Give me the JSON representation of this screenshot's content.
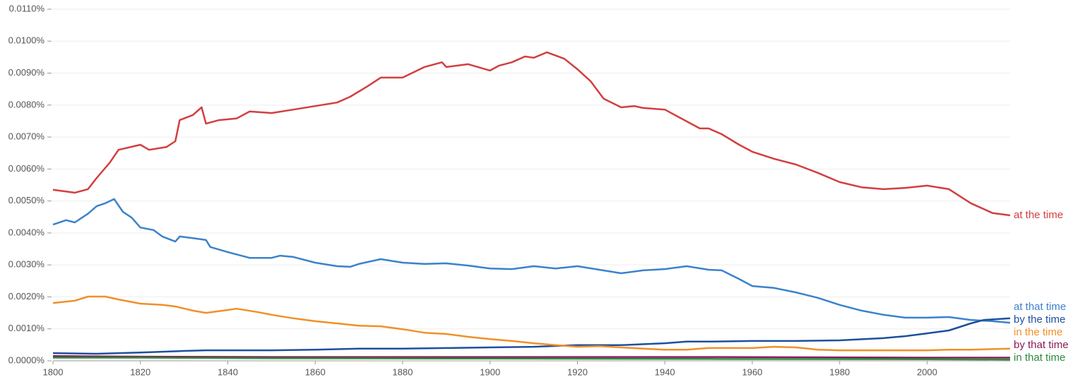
{
  "chart_data": {
    "type": "line",
    "xlim": [
      1800,
      2019
    ],
    "xticks": [
      1800,
      1820,
      1840,
      1860,
      1880,
      1900,
      1920,
      1940,
      1960,
      1980,
      2000
    ],
    "ylim": [
      0,
      0.011
    ],
    "yticks": [
      {
        "value": 0,
        "label": "0.0000%"
      },
      {
        "value": 0.001,
        "label": "0.0010%"
      },
      {
        "value": 0.002,
        "label": "0.0020%"
      },
      {
        "value": 0.003,
        "label": "0.0030%"
      },
      {
        "value": 0.004,
        "label": "0.0040%"
      },
      {
        "value": 0.005,
        "label": "0.0050%"
      },
      {
        "value": 0.006,
        "label": "0.0060%"
      },
      {
        "value": 0.007,
        "label": "0.0070%"
      },
      {
        "value": 0.008,
        "label": "0.0080%"
      },
      {
        "value": 0.009,
        "label": "0.0090%"
      },
      {
        "value": 0.01,
        "label": "0.0100%"
      },
      {
        "value": 0.011,
        "label": "0.0110%"
      }
    ],
    "grid": true,
    "series": [
      {
        "name": "at the time",
        "color": "#d23f3f",
        "x": [
          1800,
          1805,
          1808,
          1810,
          1813,
          1815,
          1820,
          1822,
          1826,
          1828,
          1829,
          1832,
          1834,
          1835,
          1838,
          1842,
          1845,
          1850,
          1855,
          1860,
          1865,
          1868,
          1872,
          1875,
          1880,
          1885,
          1889,
          1890,
          1895,
          1900,
          1902,
          1905,
          1908,
          1910,
          1913,
          1917,
          1920,
          1923,
          1926,
          1930,
          1933,
          1935,
          1940,
          1945,
          1948,
          1950,
          1953,
          1957,
          1960,
          1965,
          1970,
          1975,
          1980,
          1985,
          1990,
          1995,
          2000,
          2005,
          2010,
          2015,
          2019
        ],
        "values": [
          0.00535,
          0.00526,
          0.00537,
          0.00572,
          0.0062,
          0.0066,
          0.00676,
          0.0066,
          0.00669,
          0.00687,
          0.00753,
          0.00769,
          0.00793,
          0.00742,
          0.00753,
          0.00758,
          0.0078,
          0.00775,
          0.00786,
          0.00797,
          0.00808,
          0.00826,
          0.00859,
          0.00886,
          0.00886,
          0.00919,
          0.00934,
          0.00919,
          0.00928,
          0.00908,
          0.00923,
          0.00934,
          0.00952,
          0.00948,
          0.00965,
          0.00945,
          0.00912,
          0.00875,
          0.0082,
          0.00793,
          0.00797,
          0.00791,
          0.00786,
          0.00749,
          0.00727,
          0.00727,
          0.00709,
          0.00676,
          0.00654,
          0.00632,
          0.00614,
          0.00588,
          0.00559,
          0.00543,
          0.00537,
          0.00541,
          0.00548,
          0.00537,
          0.00493,
          0.00462,
          0.00455
        ]
      },
      {
        "name": "at that time",
        "color": "#3b82cc",
        "x": [
          1800,
          1803,
          1805,
          1808,
          1810,
          1812,
          1814,
          1816,
          1818,
          1820,
          1823,
          1825,
          1828,
          1829,
          1832,
          1835,
          1836,
          1840,
          1845,
          1850,
          1852,
          1855,
          1860,
          1865,
          1868,
          1870,
          1875,
          1880,
          1885,
          1890,
          1895,
          1900,
          1905,
          1910,
          1915,
          1920,
          1925,
          1930,
          1935,
          1940,
          1945,
          1950,
          1953,
          1957,
          1960,
          1965,
          1970,
          1975,
          1980,
          1985,
          1990,
          1995,
          2000,
          2005,
          2010,
          2015,
          2019
        ],
        "values": [
          0.00426,
          0.0044,
          0.00433,
          0.0046,
          0.00484,
          0.00493,
          0.00506,
          0.00466,
          0.00448,
          0.00417,
          0.00409,
          0.00389,
          0.00373,
          0.00389,
          0.00384,
          0.00378,
          0.00356,
          0.0034,
          0.00322,
          0.00322,
          0.00329,
          0.00325,
          0.00307,
          0.00296,
          0.00294,
          0.00303,
          0.00318,
          0.00307,
          0.00303,
          0.00305,
          0.00298,
          0.00289,
          0.00287,
          0.00296,
          0.00289,
          0.00296,
          0.00285,
          0.00274,
          0.00283,
          0.00287,
          0.00296,
          0.00285,
          0.00283,
          0.00256,
          0.00234,
          0.00228,
          0.00214,
          0.00197,
          0.00175,
          0.00157,
          0.00144,
          0.00135,
          0.00135,
          0.00137,
          0.00128,
          0.00124,
          0.00119
        ]
      },
      {
        "name": "by the time",
        "color": "#1f4f9e",
        "x": [
          1800,
          1810,
          1820,
          1830,
          1835,
          1840,
          1850,
          1860,
          1870,
          1880,
          1890,
          1900,
          1910,
          1920,
          1930,
          1940,
          1945,
          1950,
          1960,
          1970,
          1980,
          1990,
          1995,
          2000,
          2005,
          2010,
          2013,
          2019
        ],
        "values": [
          0.00024,
          0.00022,
          0.00026,
          0.00031,
          0.00033,
          0.00033,
          0.00033,
          0.00035,
          0.00038,
          0.00038,
          0.0004,
          0.00042,
          0.00044,
          0.00049,
          0.00049,
          0.00055,
          0.0006,
          0.0006,
          0.00062,
          0.00062,
          0.00064,
          0.00071,
          0.00077,
          0.00086,
          0.00095,
          0.00117,
          0.00128,
          0.00133
        ]
      },
      {
        "name": "in the time",
        "color": "#f0902a",
        "x": [
          1800,
          1805,
          1808,
          1812,
          1815,
          1820,
          1825,
          1828,
          1832,
          1835,
          1840,
          1842,
          1847,
          1850,
          1855,
          1860,
          1865,
          1870,
          1875,
          1880,
          1885,
          1890,
          1895,
          1900,
          1905,
          1910,
          1915,
          1920,
          1925,
          1930,
          1935,
          1940,
          1945,
          1950,
          1955,
          1960,
          1965,
          1970,
          1975,
          1980,
          1990,
          2000,
          2005,
          2010,
          2019
        ],
        "values": [
          0.00181,
          0.00188,
          0.00201,
          0.00201,
          0.00192,
          0.00179,
          0.00175,
          0.0017,
          0.00157,
          0.0015,
          0.00159,
          0.00163,
          0.00152,
          0.00144,
          0.00133,
          0.00124,
          0.00117,
          0.0011,
          0.00108,
          0.00099,
          0.00088,
          0.00084,
          0.00075,
          0.00068,
          0.00062,
          0.00055,
          0.00049,
          0.00044,
          0.00046,
          0.00042,
          0.00038,
          0.00035,
          0.00035,
          0.0004,
          0.0004,
          0.0004,
          0.00044,
          0.00042,
          0.00035,
          0.00033,
          0.00033,
          0.00033,
          0.00035,
          0.00035,
          0.00038
        ]
      },
      {
        "name": "by that time",
        "color": "#8a1c5a",
        "x": [
          1800,
          1820,
          1850,
          1900,
          1950,
          2000,
          2019
        ],
        "values": [
          0.00015,
          0.00013,
          0.00012,
          0.00012,
          0.00012,
          0.0001,
          0.0001
        ]
      },
      {
        "name": "in that time",
        "color": "#2e8b3e",
        "x": [
          1800,
          1820,
          1850,
          1900,
          1950,
          2000,
          2019
        ],
        "values": [
          0.0001,
          0.0001,
          8e-05,
          7e-05,
          6e-05,
          5e-05,
          4e-05
        ]
      }
    ]
  }
}
